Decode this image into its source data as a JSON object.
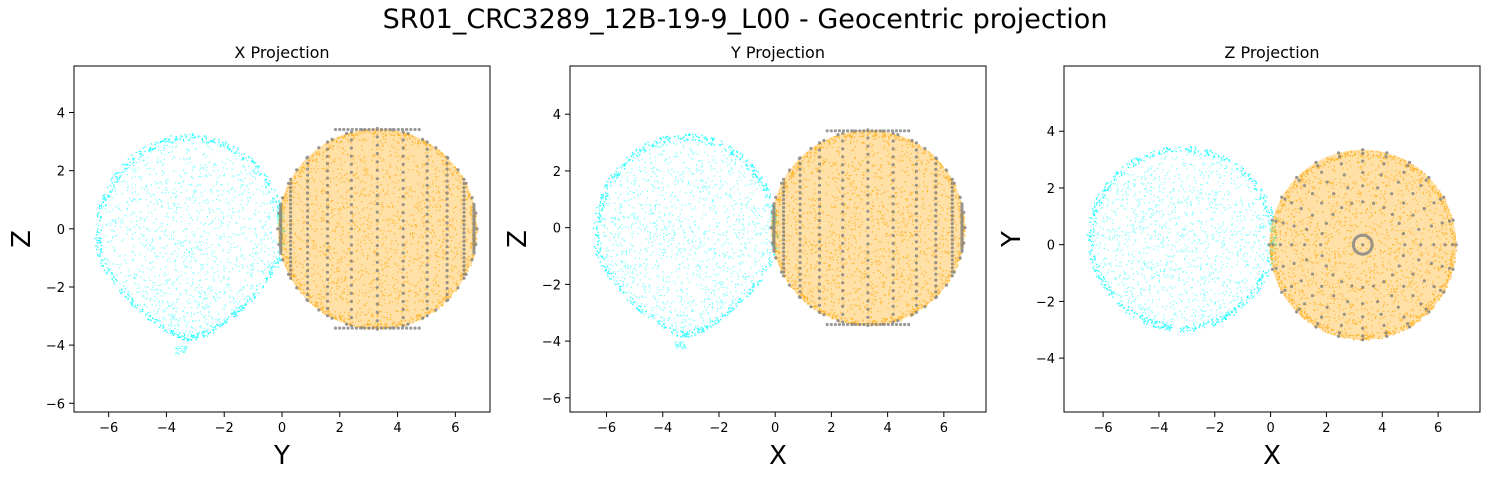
{
  "figure": {
    "title": "SR01_CRC3289_12B-19-9_L00 - Geocentric projection"
  },
  "colors": {
    "left_body": "#00ffff",
    "right_body": "#ffa500",
    "grid_points": "#808080",
    "axes": "#000000"
  },
  "chart_data": [
    {
      "type": "scatter",
      "title": "X Projection",
      "xlabel": "Y",
      "ylabel": "Z",
      "xlim": [
        -7.2,
        7.2
      ],
      "ylim": [
        -6.3,
        5.6
      ],
      "xticks": [
        -6,
        -4,
        -2,
        0,
        2,
        4,
        6
      ],
      "yticks": [
        -6,
        -4,
        -2,
        0,
        2,
        4
      ],
      "series": [
        {
          "kind": "blob",
          "color": "#00ffff",
          "center": [
            -3.2,
            -0.25
          ],
          "rx": 3.3,
          "ry_top": 3.55,
          "ry_bottom": 3.6,
          "lower_taper": 0.45,
          "tail": [
            -3.5,
            -4.15
          ]
        },
        {
          "kind": "sphere-side",
          "color": "#ffa500",
          "center": [
            3.3,
            0.0
          ],
          "r": 3.45,
          "grid_color": "#808080"
        }
      ]
    },
    {
      "type": "scatter",
      "title": "Y Projection",
      "xlabel": "X",
      "ylabel": "Z",
      "xlim": [
        -7.3,
        7.5
      ],
      "ylim": [
        -6.5,
        5.7
      ],
      "xticks": [
        -6,
        -4,
        -2,
        0,
        2,
        4,
        6
      ],
      "yticks": [
        -6,
        -4,
        -2,
        0,
        2,
        4
      ],
      "series": [
        {
          "kind": "blob",
          "color": "#00ffff",
          "center": [
            -3.2,
            -0.25
          ],
          "rx": 3.3,
          "ry_top": 3.6,
          "ry_bottom": 3.6,
          "lower_taper": 0.45,
          "tail": [
            -3.4,
            -4.1
          ]
        },
        {
          "kind": "sphere-side",
          "color": "#ffa500",
          "center": [
            3.3,
            0.0
          ],
          "r": 3.45,
          "grid_color": "#808080"
        }
      ]
    },
    {
      "type": "scatter",
      "title": "Z Projection",
      "xlabel": "X",
      "ylabel": "Y",
      "xlim": [
        -7.4,
        7.5
      ],
      "ylim": [
        -5.9,
        6.3
      ],
      "xticks": [
        -6,
        -4,
        -2,
        0,
        2,
        4,
        6
      ],
      "yticks": [
        -4,
        -2,
        0,
        2,
        4
      ],
      "series": [
        {
          "kind": "blob",
          "color": "#00ffff",
          "center": [
            -3.2,
            0.25
          ],
          "rx": 3.4,
          "ry_top": 3.25,
          "ry_bottom": 3.3,
          "lower_taper": 0.05,
          "tail": null
        },
        {
          "kind": "sphere-top",
          "color": "#ffa500",
          "center": [
            3.3,
            0.0
          ],
          "r": 3.35,
          "grid_color": "#808080"
        }
      ]
    }
  ]
}
